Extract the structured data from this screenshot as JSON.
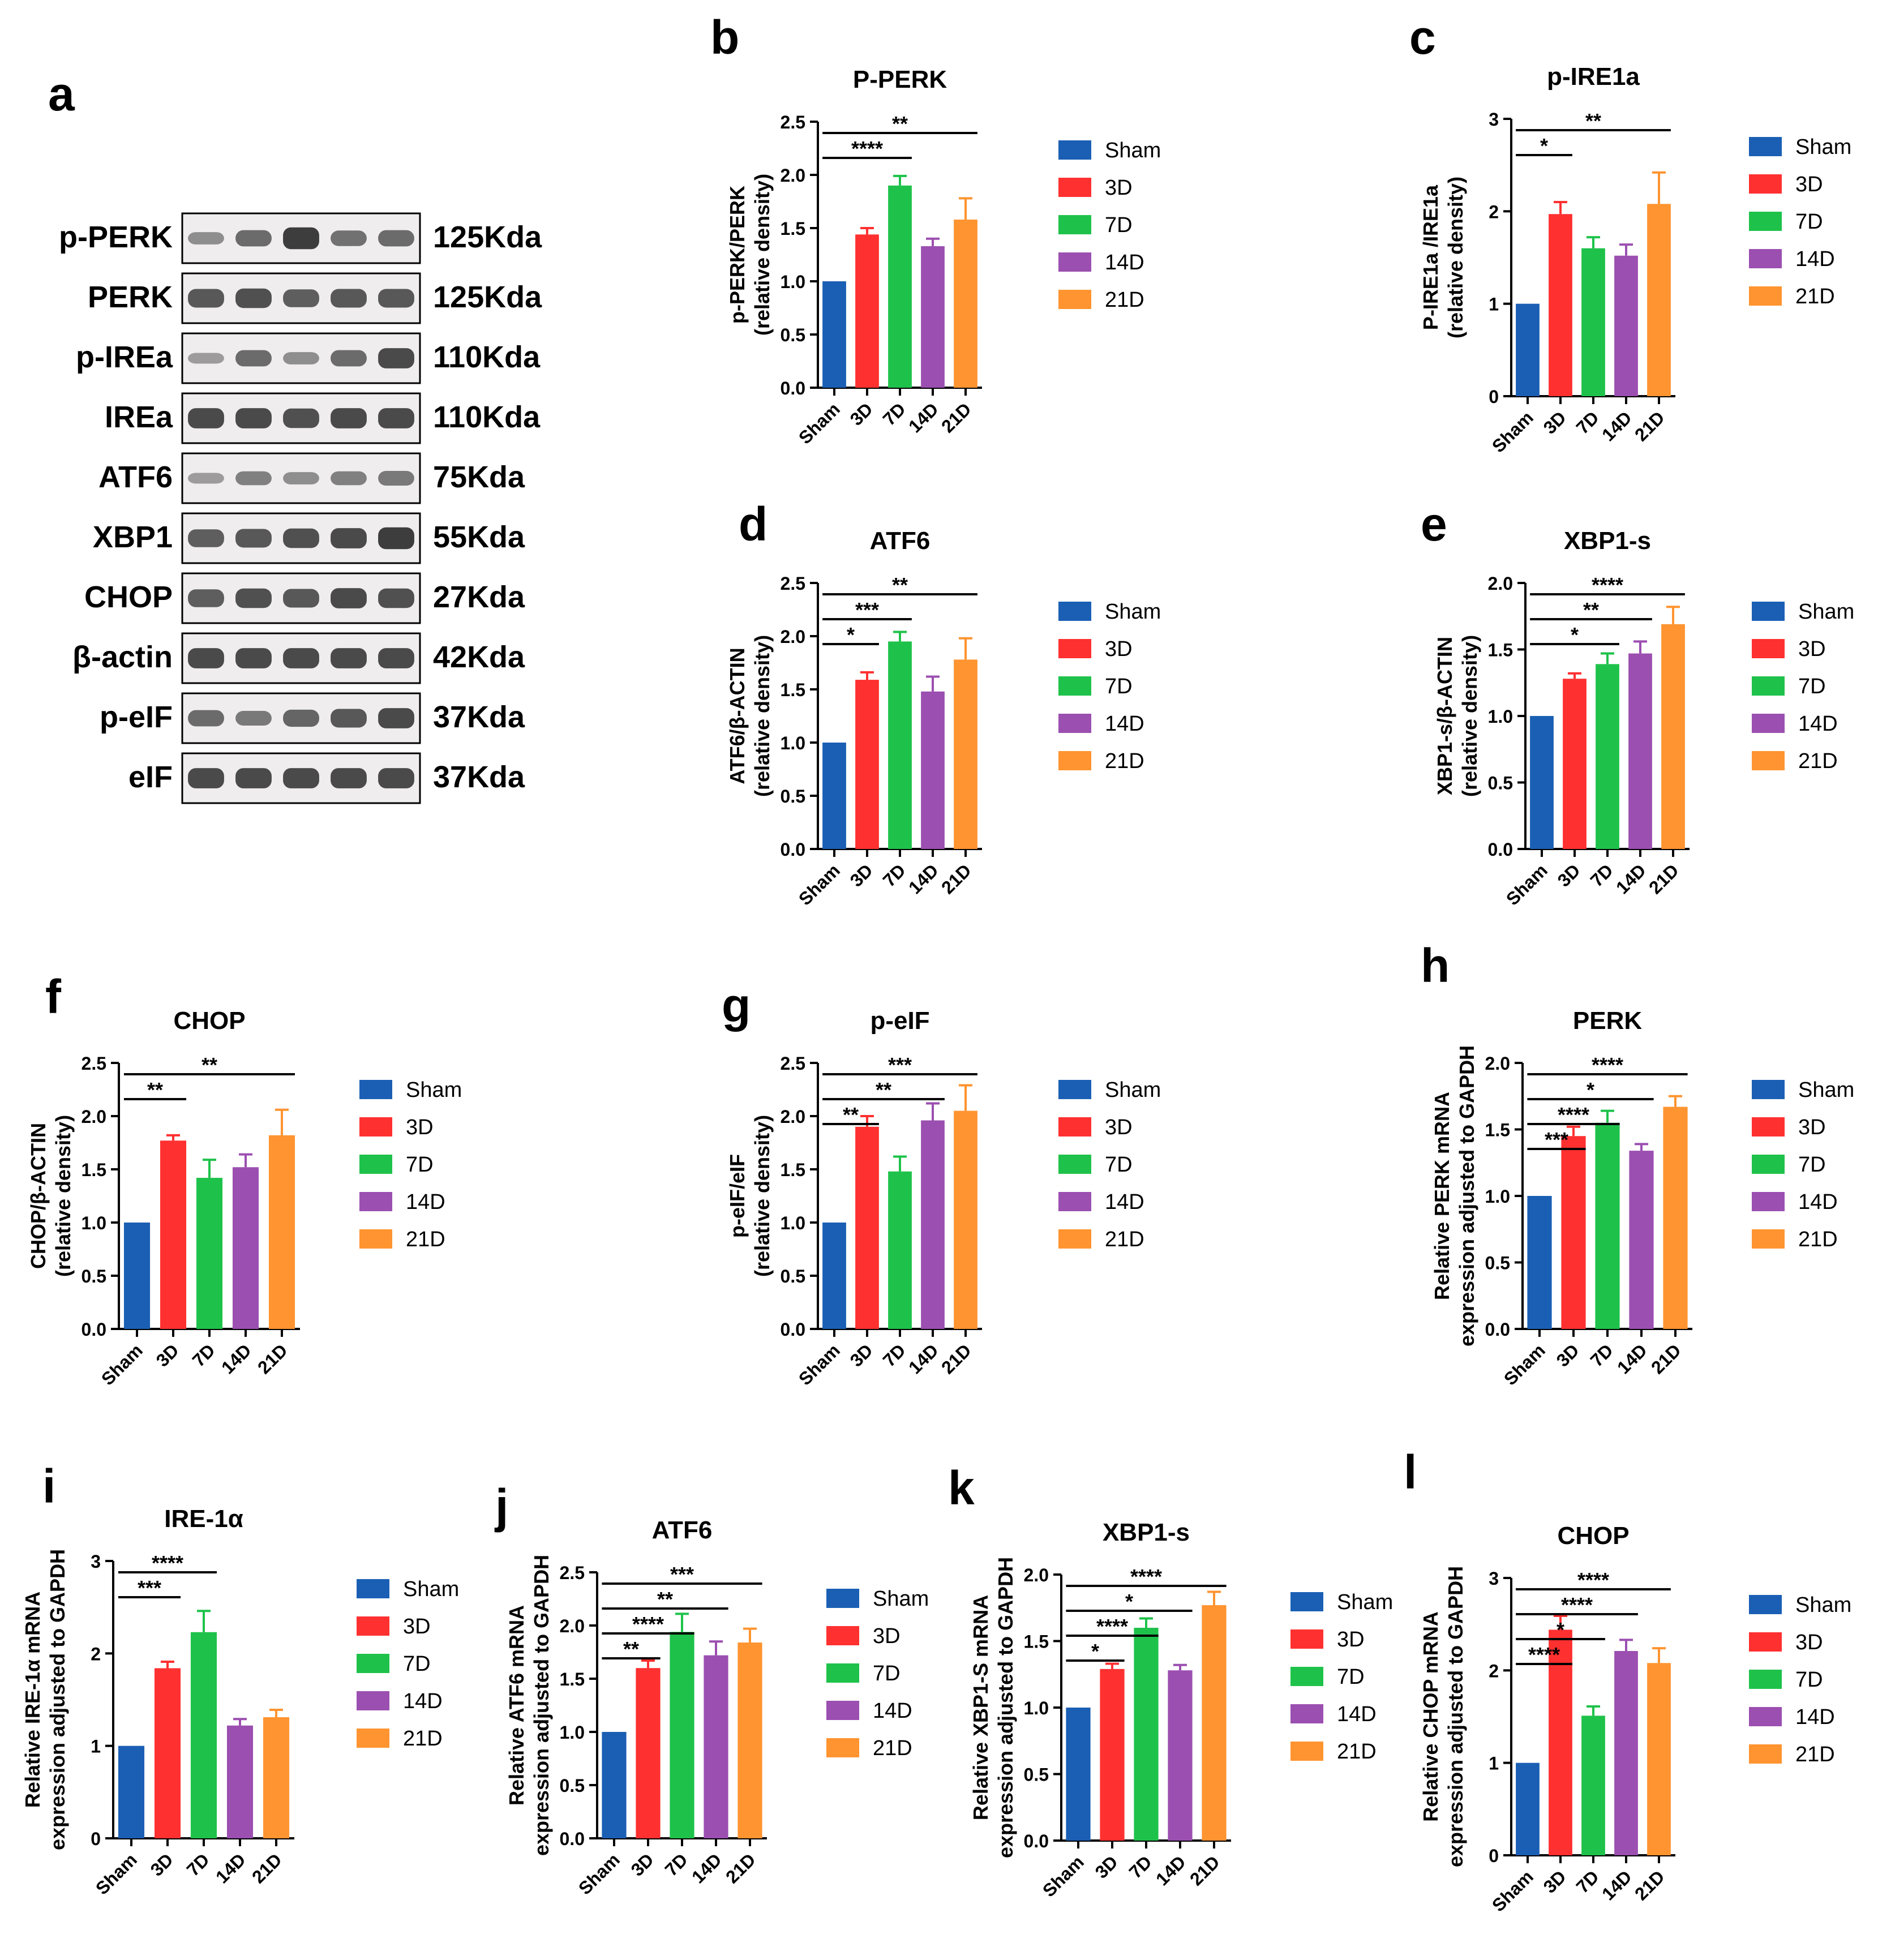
{
  "figure": {
    "groups": [
      "Sham",
      "3D",
      "7D",
      "14D",
      "21D"
    ],
    "colors": {
      "Sham": "#1a5fb4",
      "3D": "#ff3030",
      "7D": "#1ec24a",
      "14D": "#9b4fb0",
      "21D": "#ff9430",
      "axis": "#000000",
      "blot_bg": "#efeded",
      "band": "#2b2b2b"
    }
  },
  "western_blot": {
    "panel": "a",
    "rows": [
      {
        "protein": "p-PERK",
        "size": "125Kda",
        "intensities": [
          0.35,
          0.6,
          0.95,
          0.55,
          0.6
        ]
      },
      {
        "protein": "PERK",
        "size": "125Kda",
        "intensities": [
          0.75,
          0.8,
          0.7,
          0.75,
          0.75
        ]
      },
      {
        "protein": "p-IREa",
        "size": "110Kda",
        "intensities": [
          0.25,
          0.6,
          0.35,
          0.6,
          0.85
        ]
      },
      {
        "protein": "IREa",
        "size": "110Kda",
        "intensities": [
          0.85,
          0.85,
          0.8,
          0.85,
          0.85
        ]
      },
      {
        "protein": "ATF6",
        "size": "75Kda",
        "intensities": [
          0.25,
          0.45,
          0.35,
          0.45,
          0.5
        ]
      },
      {
        "protein": "XBP1",
        "size": "55Kda",
        "intensities": [
          0.7,
          0.75,
          0.8,
          0.85,
          0.95
        ]
      },
      {
        "protein": "CHOP",
        "size": "27Kda",
        "intensities": [
          0.7,
          0.8,
          0.75,
          0.85,
          0.8
        ]
      },
      {
        "protein": "β-actin",
        "size": "42Kda",
        "intensities": [
          0.85,
          0.85,
          0.85,
          0.85,
          0.85
        ]
      },
      {
        "protein": "p-eIF",
        "size": "37Kda",
        "intensities": [
          0.6,
          0.5,
          0.65,
          0.75,
          0.85
        ]
      },
      {
        "protein": "eIF",
        "size": "37Kda",
        "intensities": [
          0.85,
          0.85,
          0.85,
          0.85,
          0.85
        ]
      }
    ]
  },
  "chart_data": [
    {
      "panel": "b",
      "type": "bar",
      "title": "P-PERK",
      "ylabel": [
        "p-PERK/PERK",
        "(relative density)"
      ],
      "categories": [
        "Sham",
        "3D",
        "7D",
        "14D",
        "21D"
      ],
      "values": [
        1.0,
        1.44,
        1.9,
        1.33,
        1.58
      ],
      "errors": [
        0,
        0.06,
        0.09,
        0.07,
        0.2
      ],
      "ylim": [
        0,
        2.5
      ],
      "yticks": [
        0.0,
        0.5,
        1.0,
        1.5,
        2.0,
        2.5
      ],
      "tick_decimals": 1,
      "brackets": [
        {
          "from": 0,
          "to": 2,
          "label": "****"
        },
        {
          "from": 0,
          "to": 4,
          "label": "**"
        }
      ]
    },
    {
      "panel": "c",
      "type": "bar",
      "title": "p-IRE1a",
      "ylabel": [
        "P-IRE1a /IRE1a",
        "(relative density)"
      ],
      "categories": [
        "Sham",
        "3D",
        "7D",
        "14D",
        "21D"
      ],
      "values": [
        1.0,
        1.97,
        1.6,
        1.52,
        2.08
      ],
      "errors": [
        0,
        0.13,
        0.12,
        0.12,
        0.34
      ],
      "ylim": [
        0,
        3
      ],
      "yticks": [
        0,
        1,
        2,
        3
      ],
      "tick_decimals": 0,
      "brackets": [
        {
          "from": 0,
          "to": 1,
          "label": "*"
        },
        {
          "from": 0,
          "to": 4,
          "label": "**"
        }
      ]
    },
    {
      "panel": "d",
      "type": "bar",
      "title": "ATF6",
      "ylabel": [
        "ATF6/β-ACTIN",
        "(relative density)"
      ],
      "categories": [
        "Sham",
        "3D",
        "7D",
        "14D",
        "21D"
      ],
      "values": [
        1.0,
        1.59,
        1.95,
        1.48,
        1.78
      ],
      "errors": [
        0,
        0.07,
        0.09,
        0.14,
        0.2
      ],
      "ylim": [
        0,
        2.5
      ],
      "yticks": [
        0.0,
        0.5,
        1.0,
        1.5,
        2.0,
        2.5
      ],
      "tick_decimals": 1,
      "brackets": [
        {
          "from": 0,
          "to": 1,
          "label": "*"
        },
        {
          "from": 0,
          "to": 2,
          "label": "***"
        },
        {
          "from": 0,
          "to": 4,
          "label": "**"
        }
      ]
    },
    {
      "panel": "e",
      "type": "bar",
      "title": "XBP1-s",
      "ylabel": [
        "XBP1-s/β-ACTIN",
        "(relative density)"
      ],
      "categories": [
        "Sham",
        "3D",
        "7D",
        "14D",
        "21D"
      ],
      "values": [
        1.0,
        1.28,
        1.39,
        1.47,
        1.69
      ],
      "errors": [
        0,
        0.04,
        0.08,
        0.09,
        0.13
      ],
      "ylim": [
        0,
        2.0
      ],
      "yticks": [
        0.0,
        0.5,
        1.0,
        1.5,
        2.0
      ],
      "tick_decimals": 1,
      "brackets": [
        {
          "from": 0,
          "to": 2,
          "label": "*"
        },
        {
          "from": 0,
          "to": 3,
          "label": "**"
        },
        {
          "from": 0,
          "to": 4,
          "label": "****"
        }
      ]
    },
    {
      "panel": "f",
      "type": "bar",
      "title": "CHOP",
      "ylabel": [
        "CHOP/β-ACTIN",
        "(relative density)"
      ],
      "categories": [
        "Sham",
        "3D",
        "7D",
        "14D",
        "21D"
      ],
      "values": [
        1.0,
        1.77,
        1.42,
        1.52,
        1.82
      ],
      "errors": [
        0,
        0.05,
        0.17,
        0.12,
        0.24
      ],
      "ylim": [
        0,
        2.5
      ],
      "yticks": [
        0.0,
        0.5,
        1.0,
        1.5,
        2.0,
        2.5
      ],
      "tick_decimals": 1,
      "brackets": [
        {
          "from": 0,
          "to": 1,
          "label": "**"
        },
        {
          "from": 0,
          "to": 4,
          "label": "**"
        }
      ]
    },
    {
      "panel": "g",
      "type": "bar",
      "title": "p-eIF",
      "ylabel": [
        "p-eIF/eIF",
        "(relative density)"
      ],
      "categories": [
        "Sham",
        "3D",
        "7D",
        "14D",
        "21D"
      ],
      "values": [
        1.0,
        1.9,
        1.48,
        1.96,
        2.05
      ],
      "errors": [
        0,
        0.1,
        0.14,
        0.16,
        0.24
      ],
      "ylim": [
        0,
        2.5
      ],
      "yticks": [
        0.0,
        0.5,
        1.0,
        1.5,
        2.0,
        2.5
      ],
      "tick_decimals": 1,
      "brackets": [
        {
          "from": 0,
          "to": 1,
          "label": "**"
        },
        {
          "from": 0,
          "to": 3,
          "label": "**"
        },
        {
          "from": 0,
          "to": 4,
          "label": "***"
        }
      ]
    },
    {
      "panel": "h",
      "type": "bar",
      "title": "PERK",
      "ylabel": [
        "Relative PERK mRNA",
        "expression adjusted to GAPDH"
      ],
      "categories": [
        "Sham",
        "3D",
        "7D",
        "14D",
        "21D"
      ],
      "values": [
        1.0,
        1.45,
        1.55,
        1.34,
        1.67
      ],
      "errors": [
        0,
        0.07,
        0.09,
        0.05,
        0.08
      ],
      "ylim": [
        0,
        2.0
      ],
      "yticks": [
        0.0,
        0.5,
        1.0,
        1.5,
        2.0
      ],
      "tick_decimals": 1,
      "brackets": [
        {
          "from": 0,
          "to": 1,
          "label": "***"
        },
        {
          "from": 0,
          "to": 2,
          "label": "****"
        },
        {
          "from": 0,
          "to": 3,
          "label": "*"
        },
        {
          "from": 0,
          "to": 4,
          "label": "****"
        }
      ]
    },
    {
      "panel": "i",
      "type": "bar",
      "title": "IRE-1α",
      "ylabel": [
        "Relative IRE-1α mRNA",
        "expression adjusted to GAPDH"
      ],
      "categories": [
        "Sham",
        "3D",
        "7D",
        "14D",
        "21D"
      ],
      "values": [
        1.0,
        1.84,
        2.23,
        1.22,
        1.31
      ],
      "errors": [
        0,
        0.07,
        0.23,
        0.07,
        0.08
      ],
      "ylim": [
        0,
        3
      ],
      "yticks": [
        0,
        1,
        2,
        3
      ],
      "tick_decimals": 0,
      "brackets": [
        {
          "from": 0,
          "to": 1,
          "label": "***"
        },
        {
          "from": 0,
          "to": 2,
          "label": "****"
        }
      ]
    },
    {
      "panel": "j",
      "type": "bar",
      "title": "ATF6",
      "ylabel": [
        "Relative ATF6 mRNA",
        "expression adjusted to GAPDH"
      ],
      "categories": [
        "Sham",
        "3D",
        "7D",
        "14D",
        "21D"
      ],
      "values": [
        1.0,
        1.6,
        1.94,
        1.72,
        1.84
      ],
      "errors": [
        0,
        0.07,
        0.17,
        0.13,
        0.13
      ],
      "ylim": [
        0,
        2.5
      ],
      "yticks": [
        0.0,
        0.5,
        1.0,
        1.5,
        2.0,
        2.5
      ],
      "tick_decimals": 1,
      "brackets": [
        {
          "from": 0,
          "to": 1,
          "label": "**"
        },
        {
          "from": 0,
          "to": 2,
          "label": "****"
        },
        {
          "from": 0,
          "to": 3,
          "label": "**"
        },
        {
          "from": 0,
          "to": 4,
          "label": "***"
        }
      ]
    },
    {
      "panel": "k",
      "type": "bar",
      "title": "XBP1-s",
      "ylabel": [
        "Relative XBP1-S mRNA",
        "expression adjusted to GAPDH"
      ],
      "categories": [
        "Sham",
        "3D",
        "7D",
        "14D",
        "21D"
      ],
      "values": [
        1.0,
        1.29,
        1.6,
        1.28,
        1.77
      ],
      "errors": [
        0,
        0.04,
        0.07,
        0.04,
        0.1
      ],
      "ylim": [
        0,
        2.0
      ],
      "yticks": [
        0.0,
        0.5,
        1.0,
        1.5,
        2.0
      ],
      "tick_decimals": 1,
      "brackets": [
        {
          "from": 0,
          "to": 1,
          "label": "*"
        },
        {
          "from": 0,
          "to": 2,
          "label": "****"
        },
        {
          "from": 0,
          "to": 3,
          "label": "*"
        },
        {
          "from": 0,
          "to": 4,
          "label": "****"
        }
      ]
    },
    {
      "panel": "l",
      "type": "bar",
      "title": "CHOP",
      "ylabel": [
        "Relative CHOP mRNA",
        "expression adjusted to GAPDH"
      ],
      "categories": [
        "Sham",
        "3D",
        "7D",
        "14D",
        "21D"
      ],
      "values": [
        1.0,
        2.44,
        1.51,
        2.21,
        2.08
      ],
      "errors": [
        0,
        0.15,
        0.1,
        0.12,
        0.16
      ],
      "ylim": [
        0,
        3
      ],
      "yticks": [
        0,
        1,
        2,
        3
      ],
      "tick_decimals": 0,
      "brackets": [
        {
          "from": 0,
          "to": 1,
          "label": "****"
        },
        {
          "from": 0,
          "to": 2,
          "label": "*"
        },
        {
          "from": 0,
          "to": 3,
          "label": "****"
        },
        {
          "from": 0,
          "to": 4,
          "label": "****"
        }
      ]
    }
  ]
}
